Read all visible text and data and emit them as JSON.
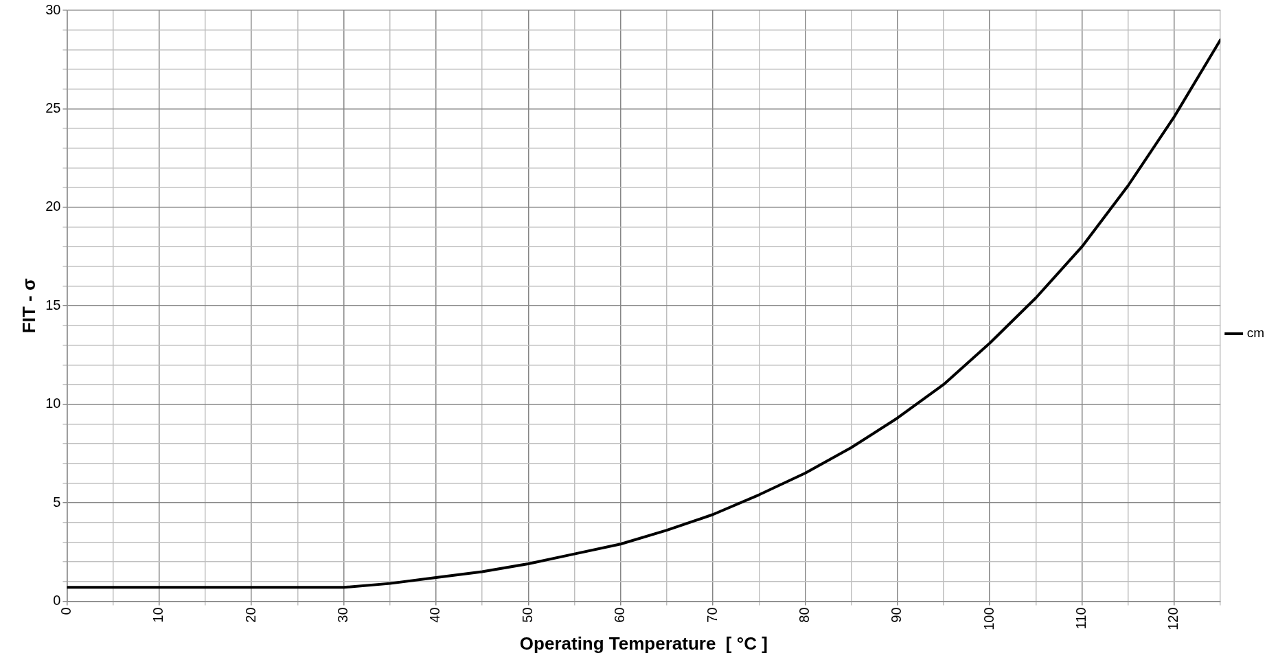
{
  "chart_data": {
    "type": "line",
    "xlabel": "Operating Temperature  [ °C ]",
    "ylabel": "FIT - σ",
    "x": [
      0,
      5,
      10,
      15,
      20,
      25,
      30,
      35,
      40,
      45,
      50,
      55,
      60,
      65,
      70,
      75,
      80,
      85,
      90,
      95,
      100,
      105,
      110,
      115,
      120,
      125
    ],
    "series": [
      {
        "name": "cm",
        "color": "#000000",
        "values": [
          0.7,
          0.7,
          0.7,
          0.7,
          0.7,
          0.7,
          0.7,
          0.9,
          1.2,
          1.5,
          1.9,
          2.4,
          2.9,
          3.6,
          4.4,
          5.4,
          6.5,
          7.8,
          9.3,
          11.0,
          13.1,
          15.4,
          18.0,
          21.1,
          24.6,
          28.5
        ]
      }
    ],
    "xlim": [
      0,
      125
    ],
    "ylim": [
      0,
      30
    ],
    "xticks": [
      0,
      {
        "value": 5,
        "label": null
      },
      10,
      {
        "value": 15,
        "label": null
      },
      20,
      {
        "value": 25,
        "label": null
      },
      30,
      {
        "value": 35,
        "label": null
      },
      40,
      {
        "value": 45,
        "label": null
      },
      50,
      {
        "value": 55,
        "label": null
      },
      60,
      {
        "value": 65,
        "label": null
      },
      70,
      {
        "value": 75,
        "label": null
      },
      80,
      {
        "value": 85,
        "label": null
      },
      90,
      {
        "value": 95,
        "label": null
      },
      100,
      {
        "value": 105,
        "label": null
      },
      110,
      {
        "value": 115,
        "label": null
      },
      120,
      {
        "value": 125,
        "label": null
      }
    ],
    "yticks": [
      0,
      {
        "value": 1,
        "label": null
      },
      {
        "value": 2,
        "label": null
      },
      {
        "value": 3,
        "label": null
      },
      {
        "value": 4,
        "label": null
      },
      5,
      {
        "value": 6,
        "label": null
      },
      {
        "value": 7,
        "label": null
      },
      {
        "value": 8,
        "label": null
      },
      {
        "value": 9,
        "label": null
      },
      10,
      {
        "value": 11,
        "label": null
      },
      {
        "value": 12,
        "label": null
      },
      {
        "value": 13,
        "label": null
      },
      {
        "value": 14,
        "label": null
      },
      15,
      {
        "value": 16,
        "label": null
      },
      {
        "value": 17,
        "label": null
      },
      {
        "value": 18,
        "label": null
      },
      {
        "value": 19,
        "label": null
      },
      20,
      {
        "value": 21,
        "label": null
      },
      {
        "value": 22,
        "label": null
      },
      {
        "value": 23,
        "label": null
      },
      {
        "value": 24,
        "label": null
      },
      25,
      {
        "value": 26,
        "label": null
      },
      {
        "value": 27,
        "label": null
      },
      {
        "value": 28,
        "label": null
      },
      {
        "value": 29,
        "label": null
      },
      30
    ],
    "grid": true,
    "legend": "right",
    "marker": "none",
    "line_style": "solid"
  }
}
